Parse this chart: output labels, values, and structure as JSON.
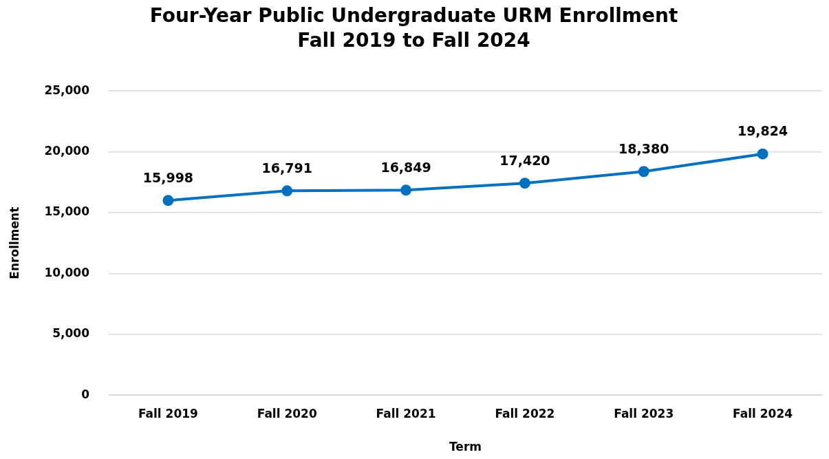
{
  "chart_data": {
    "type": "line",
    "title": "Four-Year Public Undergraduate URM Enrollment",
    "subtitle": "Fall 2019 to Fall 2024",
    "xlabel": "Term",
    "ylabel": "Enrollment",
    "categories": [
      "Fall 2019",
      "Fall 2020",
      "Fall 2021",
      "Fall 2022",
      "Fall 2023",
      "Fall 2024"
    ],
    "series": [
      {
        "color": "#0070c0",
        "values": [
          15998,
          16791,
          16849,
          17420,
          18380,
          19824
        ],
        "value_labels": [
          "15,998",
          "16,791",
          "16,849",
          "17,420",
          "18,380",
          "19,824"
        ]
      }
    ],
    "ylim": [
      0,
      25000
    ],
    "yticks": [
      {
        "value": 0,
        "label": "0"
      },
      {
        "value": 5000,
        "label": "5,000"
      },
      {
        "value": 10000,
        "label": "10,000"
      },
      {
        "value": 15000,
        "label": "15,000"
      },
      {
        "value": 20000,
        "label": "20,000"
      },
      {
        "value": 25000,
        "label": "25,000"
      }
    ],
    "grid": "y",
    "legend": false,
    "marker": "circle",
    "line_style": "solid"
  }
}
